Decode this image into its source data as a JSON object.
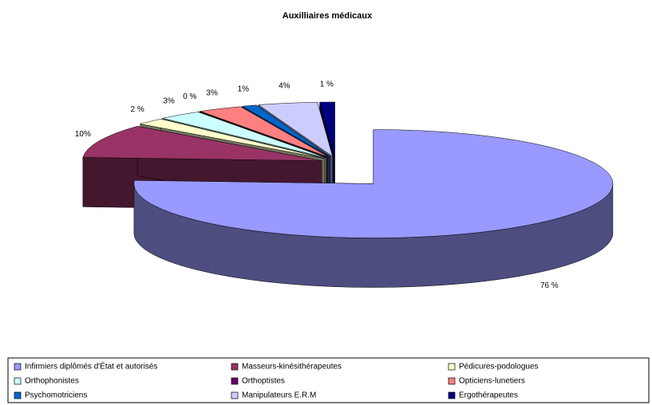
{
  "chart_data": {
    "type": "pie3d",
    "title": "Auxilliaires médicaux",
    "categories": [
      "Infirmiers diplômés d'État et autorisés",
      "Masseurs-kinésithérapeutes",
      "Pédicures-podologues",
      "Orthophonistes",
      "Orthoptistes",
      "Opticiens-lunetiers",
      "Psychomotriciens",
      "Manipulateurs E.R.M",
      "Ergothérapeutes"
    ],
    "values": [
      76,
      10,
      2,
      3,
      0,
      3,
      1,
      4,
      1
    ],
    "value_labels": [
      "76 %",
      "10%",
      "2 %",
      "3%",
      "0 %",
      "3%",
      "1%",
      "4%",
      "1 %"
    ],
    "colors": [
      "#9999ff",
      "#993366",
      "#ffffcc",
      "#ccffff",
      "#660066",
      "#ff8080",
      "#0066cc",
      "#ccccff",
      "#000080"
    ],
    "legend": "bottom"
  }
}
